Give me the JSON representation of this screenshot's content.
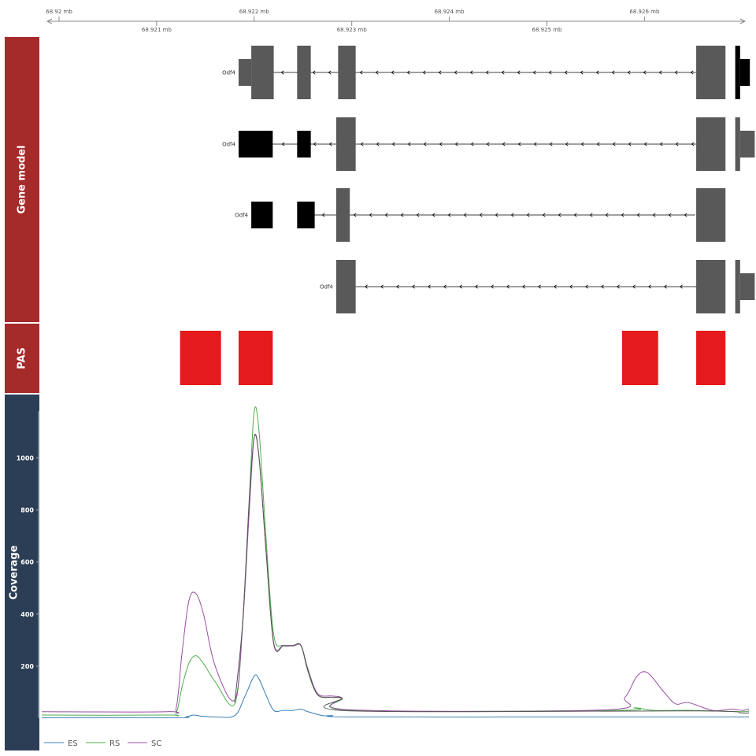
{
  "chart_data": {
    "type": "line",
    "xlim": [
      68.92,
      68.9275
    ],
    "axis": {
      "ticks_top": [
        68.92,
        68.922,
        68.924,
        68.926
      ],
      "ticks_bottom": [
        68.921,
        68.923,
        68.925
      ],
      "tick_labels_top": [
        "68.92 mb",
        "68.922 mb",
        "68.924 mb",
        "68.926 mb"
      ],
      "tick_labels_bottom": [
        "68.921 mb",
        "68.923 mb",
        "68.925 mb"
      ]
    },
    "tracks": {
      "gene_model": {
        "title": "Gene model",
        "color": "#A52A2A",
        "transcripts": [
          {
            "label": "Odf4",
            "line": [
              68.92202,
              68.92678
            ],
            "exons": [
              {
                "start": 68.92184,
                "end": 68.92197,
                "h": "mid",
                "fill": "#595959"
              },
              {
                "start": 68.92197,
                "end": 68.9222,
                "h": "full",
                "fill": "#595959"
              },
              {
                "start": 68.92244,
                "end": 68.92258,
                "h": "full",
                "fill": "#595959"
              },
              {
                "start": 68.92286,
                "end": 68.92304,
                "h": "full",
                "fill": "#595959"
              },
              {
                "start": 68.92653,
                "end": 68.92683,
                "h": "full",
                "fill": "#595959"
              },
              {
                "start": 68.92693,
                "end": 68.92698,
                "h": "full",
                "fill": "#000000"
              },
              {
                "start": 68.92698,
                "end": 68.92708,
                "h": "mid",
                "fill": "#000000"
              }
            ]
          },
          {
            "label": "Odf4",
            "line": [
              68.92219,
              68.92677
            ],
            "exons": [
              {
                "start": 68.92184,
                "end": 68.92219,
                "h": "mid",
                "fill": "#000000"
              },
              {
                "start": 68.92244,
                "end": 68.92258,
                "h": "mid",
                "fill": "#000000"
              },
              {
                "start": 68.92284,
                "end": 68.92304,
                "h": "full",
                "fill": "#595959"
              },
              {
                "start": 68.92653,
                "end": 68.92683,
                "h": "full",
                "fill": "#595959"
              },
              {
                "start": 68.92693,
                "end": 68.92698,
                "h": "full",
                "fill": "#595959"
              },
              {
                "start": 68.92698,
                "end": 68.92713,
                "h": "mid",
                "fill": "#595959"
              }
            ]
          },
          {
            "label": "Odf4",
            "line": [
              68.92244,
              68.92652
            ],
            "exons": [
              {
                "start": 68.92197,
                "end": 68.92219,
                "h": "mid",
                "fill": "#000000"
              },
              {
                "start": 68.92244,
                "end": 68.92262,
                "h": "mid",
                "fill": "#000000"
              },
              {
                "start": 68.92284,
                "end": 68.92298,
                "h": "full",
                "fill": "#595959"
              },
              {
                "start": 68.92653,
                "end": 68.92683,
                "h": "full",
                "fill": "#595959"
              }
            ]
          },
          {
            "label": "Odf4",
            "line": [
              68.92304,
              68.92677
            ],
            "exons": [
              {
                "start": 68.92284,
                "end": 68.92304,
                "h": "full",
                "fill": "#595959"
              },
              {
                "start": 68.92653,
                "end": 68.92683,
                "h": "full",
                "fill": "#595959"
              },
              {
                "start": 68.92693,
                "end": 68.92698,
                "h": "full",
                "fill": "#595959"
              },
              {
                "start": 68.92698,
                "end": 68.92713,
                "h": "mid",
                "fill": "#595959"
              }
            ]
          }
        ]
      },
      "pas": {
        "title": "PAS",
        "color": "#A52A2A",
        "fill": "#E41A1C",
        "regions": [
          [
            68.92124,
            68.92166
          ],
          [
            68.92184,
            68.92219
          ],
          [
            68.92577,
            68.92614
          ],
          [
            68.92653,
            68.92683
          ]
        ]
      },
      "coverage": {
        "title": "Coverage",
        "color": "#2C3E55",
        "ylim": [
          0,
          1180
        ],
        "y_ticks": [
          200,
          400,
          600,
          800,
          1000
        ],
        "y_tick_labels": [
          "200",
          "400",
          "600",
          "800",
          "1000"
        ],
        "series": [
          {
            "name": "ES",
            "color": "#377EB8",
            "x": [
              68.92,
              68.9212,
              68.9213,
              68.92138,
              68.92145,
              68.9216,
              68.9218,
              68.9219,
              68.922,
              68.92205,
              68.92212,
              68.9222,
              68.9223,
              68.9224,
              68.92248,
              68.92255,
              68.9227,
              68.9228,
              68.923,
              68.9255,
              68.926,
              68.9265,
              68.927,
              68.9275
            ],
            "y": [
              2,
              2,
              5,
              12,
              8,
              5,
              10,
              80,
              162,
              150,
              90,
              30,
              30,
              30,
              35,
              25,
              10,
              10,
              5,
              5,
              5,
              5,
              5,
              5
            ]
          },
          {
            "name": "RS",
            "color": "#4DAF4A",
            "x": [
              68.92,
              68.9211,
              68.9212,
              68.92126,
              68.92133,
              68.9214,
              68.92148,
              68.9216,
              68.9218,
              68.92188,
              68.92195,
              68.922,
              68.92205,
              68.92212,
              68.9222,
              68.9223,
              68.9224,
              68.92248,
              68.92255,
              68.92265,
              68.9228,
              68.9229,
              68.923,
              68.9257,
              68.9259,
              68.9261,
              68.9265,
              68.927,
              68.9275
            ],
            "y": [
              12,
              12,
              20,
              120,
              210,
              240,
              210,
              140,
              55,
              350,
              850,
              1180,
              1100,
              700,
              320,
              280,
              280,
              280,
              180,
              90,
              80,
              75,
              30,
              30,
              40,
              30,
              30,
              25,
              30
            ]
          },
          {
            "name": "SC",
            "color": "#984EA3",
            "x": [
              68.92,
              68.9211,
              68.9212,
              68.92126,
              68.92133,
              68.9214,
              68.92148,
              68.9216,
              68.9218,
              68.92188,
              68.92195,
              68.922,
              68.92205,
              68.92212,
              68.9222,
              68.9223,
              68.9224,
              68.92248,
              68.92255,
              68.92265,
              68.9228,
              68.9229,
              68.923,
              68.9256,
              68.9258,
              68.92592,
              68.92603,
              68.9262,
              68.92632,
              68.92645,
              68.9267,
              68.9269,
              68.927,
              68.9275
            ],
            "y": [
              25,
              25,
              40,
              250,
              450,
              480,
              400,
              200,
              70,
              350,
              800,
              1080,
              1000,
              650,
              290,
              280,
              280,
              280,
              190,
              95,
              85,
              78,
              32,
              32,
              80,
              160,
              175,
              100,
              55,
              60,
              30,
              35,
              30,
              35
            ]
          },
          {
            "name": "",
            "color": "#555555",
            "x": [
              68.9218,
              68.92188,
              68.92195,
              68.922,
              68.92205,
              68.92212,
              68.9222,
              68.9223,
              68.9224,
              68.92248,
              68.92255,
              68.92265,
              68.9228,
              68.9229,
              68.923,
              68.9265,
              68.927,
              68.9275
            ],
            "y": [
              60,
              360,
              840,
              1080,
              1000,
              650,
              285,
              278,
              278,
              278,
              185,
              90,
              80,
              76,
              28,
              28,
              20,
              22
            ]
          }
        ],
        "legend": {
          "position": "bottom-left",
          "entries": [
            "ES",
            "RS",
            "SC"
          ]
        }
      }
    }
  }
}
